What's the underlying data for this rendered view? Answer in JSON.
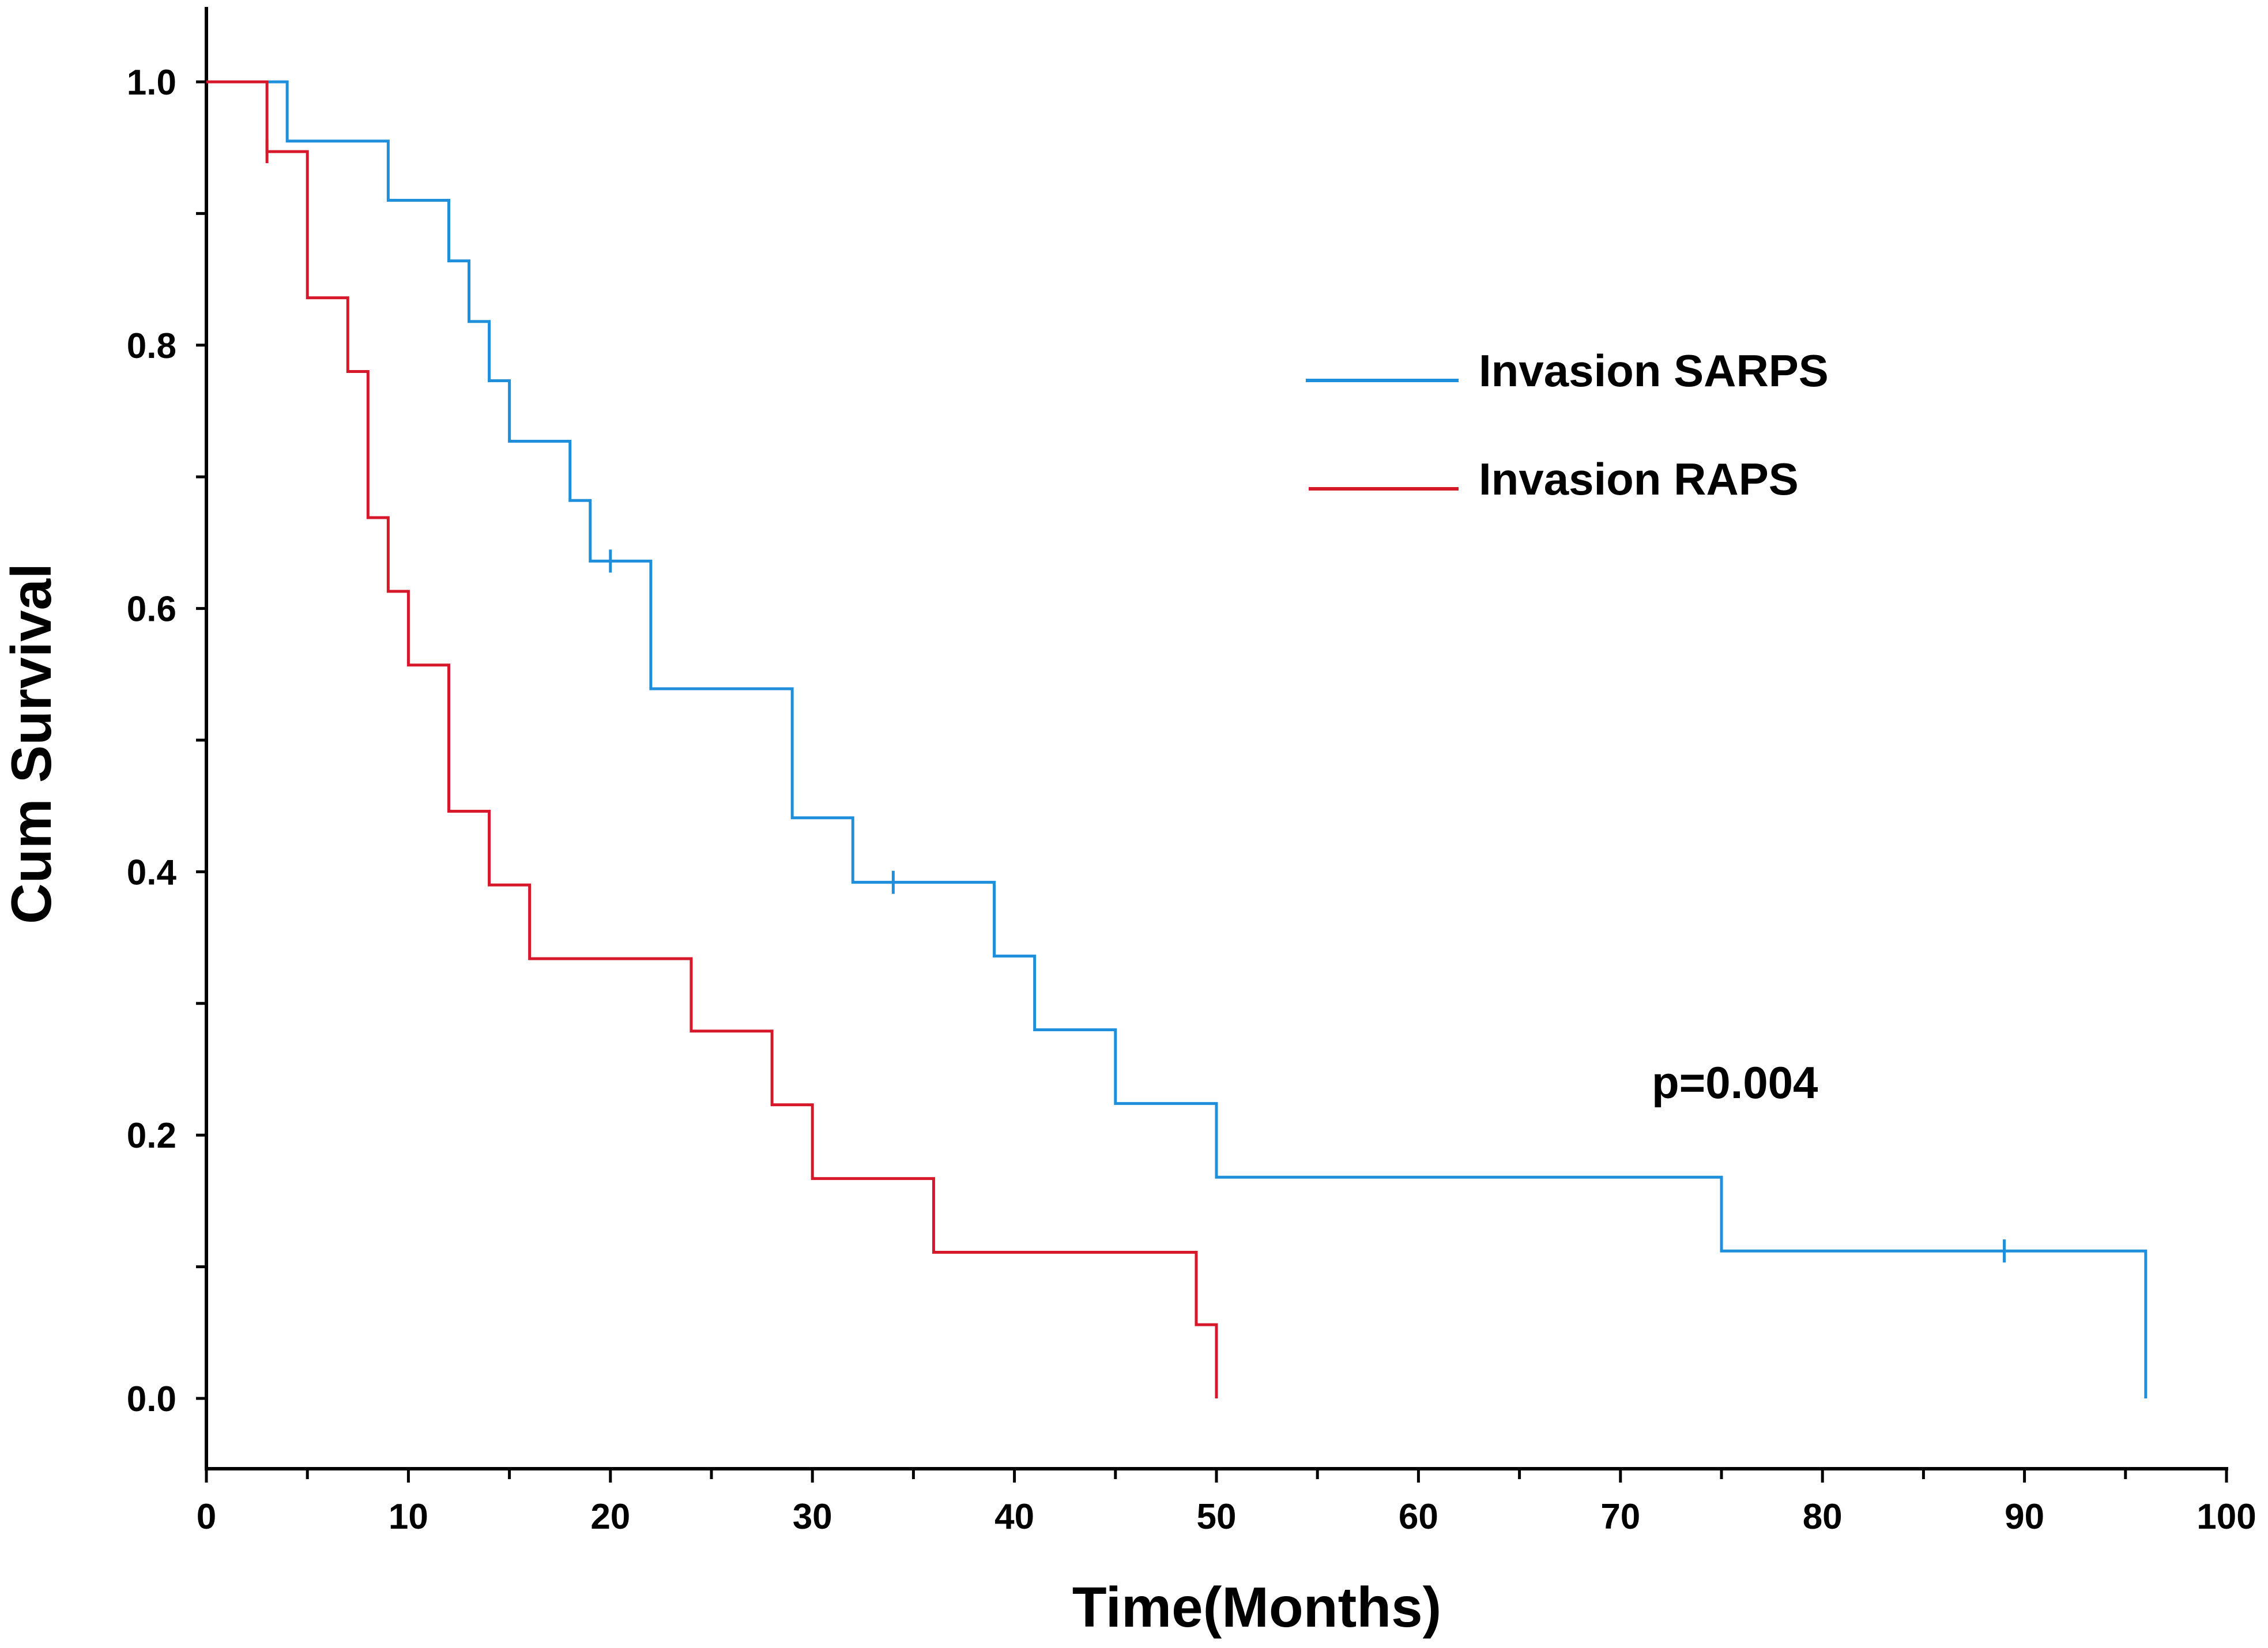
{
  "chart_data": {
    "type": "line",
    "subtype": "kaplan-meier step",
    "xlabel": "Time(Months)",
    "ylabel": "Cum Survival",
    "xlim": [
      0,
      100
    ],
    "ylim": [
      0,
      1.0
    ],
    "xticks": [
      0,
      10,
      20,
      30,
      40,
      50,
      60,
      70,
      80,
      90,
      100
    ],
    "xtick_labels": [
      "0",
      "10",
      "20",
      "30",
      "40",
      "50",
      "60",
      "70",
      "80",
      "90",
      "100"
    ],
    "yticks": [
      0.0,
      0.2,
      0.4,
      0.6,
      0.8,
      1.0
    ],
    "ytick_labels": [
      "0.0",
      "0.2",
      "0.4",
      "0.6",
      "0.8",
      "1.0"
    ],
    "grid": false,
    "legend_position": "top-right",
    "annotations": [
      {
        "text": "p=0.004",
        "x": 81,
        "y": 0.235
      }
    ],
    "series": [
      {
        "name": "Invasion SARPS",
        "color": "#1f8fdc",
        "steps": [
          [
            0,
            1.0
          ],
          [
            4,
            0.955
          ],
          [
            9,
            0.91
          ],
          [
            12,
            0.864
          ],
          [
            13,
            0.818
          ],
          [
            14,
            0.773
          ],
          [
            15,
            0.727
          ],
          [
            18,
            0.682
          ],
          [
            19,
            0.636
          ],
          [
            22,
            0.539
          ],
          [
            29,
            0.441
          ],
          [
            32,
            0.392
          ],
          [
            39,
            0.336
          ],
          [
            41,
            0.28
          ],
          [
            45,
            0.224
          ],
          [
            50,
            0.168
          ],
          [
            75,
            0.112
          ],
          [
            96,
            0.0
          ]
        ],
        "censored": [
          [
            20,
            0.636
          ],
          [
            34,
            0.392
          ],
          [
            89,
            0.112
          ]
        ]
      },
      {
        "name": "Invasion RAPS",
        "color": "#d7182a",
        "steps": [
          [
            0,
            1.0
          ],
          [
            3,
            0.947
          ],
          [
            5,
            0.836
          ],
          [
            7,
            0.78
          ],
          [
            8,
            0.669
          ],
          [
            9,
            0.613
          ],
          [
            10,
            0.557
          ],
          [
            12,
            0.446
          ],
          [
            14,
            0.39
          ],
          [
            16,
            0.334
          ],
          [
            24,
            0.279
          ],
          [
            28,
            0.223
          ],
          [
            30,
            0.167
          ],
          [
            36,
            0.111
          ],
          [
            49,
            0.056
          ],
          [
            50,
            0.0
          ]
        ],
        "censored": [
          [
            3,
            0.947
          ]
        ]
      }
    ]
  }
}
